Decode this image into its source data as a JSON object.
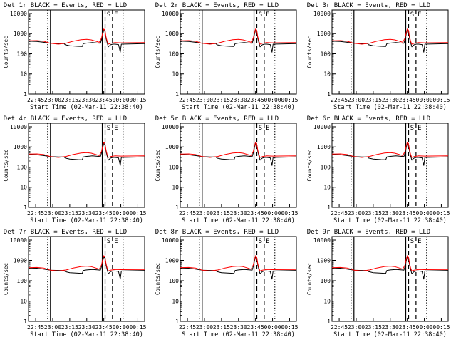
{
  "colors": {
    "events": "#000000",
    "lld": "#ff0000",
    "axes": "#000000",
    "background": "#ffffff"
  },
  "chart_data": [
    {
      "type": "line",
      "title": "Det 1r BLACK = Events, RED = LLD",
      "xlabel": "Start Time (02-Mar-11 22:38:40)",
      "ylabel": "Counts/sec"
    },
    {
      "type": "line",
      "title": "Det 2r BLACK = Events, RED = LLD",
      "xlabel": "Start Time (02-Mar-11 22:38:40)",
      "ylabel": "Counts/sec"
    },
    {
      "type": "line",
      "title": "Det 3r BLACK = Events, RED = LLD",
      "xlabel": "Start Time (02-Mar-11 22:38:40)",
      "ylabel": "Counts/sec"
    },
    {
      "type": "line",
      "title": "Det 4r BLACK = Events, RED = LLD",
      "xlabel": "Start Time (02-Mar-11 22:38:40)",
      "ylabel": "Counts/sec"
    },
    {
      "type": "line",
      "title": "Det 5r BLACK = Events, RED = LLD",
      "xlabel": "Start Time (02-Mar-11 22:38:40)",
      "ylabel": "Counts/sec"
    },
    {
      "type": "line",
      "title": "Det 6r BLACK = Events, RED = LLD",
      "xlabel": "Start Time (02-Mar-11 22:38:40)",
      "ylabel": "Counts/sec"
    },
    {
      "type": "line",
      "title": "Det 7r BLACK = Events, RED = LLD",
      "xlabel": "Start Time (02-Mar-11 22:38:40)",
      "ylabel": "Counts/sec"
    },
    {
      "type": "line",
      "title": "Det 8r BLACK = Events, RED = LLD",
      "xlabel": "Start Time (02-Mar-11 22:38:40)",
      "ylabel": "Counts/sec"
    },
    {
      "type": "line",
      "title": "Det 9r BLACK = Events, RED = LLD",
      "xlabel": "Start Time (02-Mar-11 22:38:40)",
      "ylabel": "Counts/sec"
    }
  ],
  "shared": {
    "x_ticks": [
      "22:45",
      "23:00",
      "23:15",
      "23:30",
      "23:45",
      "00:00",
      "00:15"
    ],
    "x_tick_times": [
      "22:45",
      "23:00",
      "23:15",
      "23:30",
      "23:45",
      "00:00",
      "00:15"
    ],
    "xlim": [
      "22:38:40",
      "00:21:00"
    ],
    "y_scale": "log",
    "ylim": [
      1,
      15000
    ],
    "y_ticks": [
      1,
      10,
      100,
      1000,
      10000
    ],
    "y_tick_labels": [
      "1",
      "10",
      "100",
      "1000",
      "10000"
    ],
    "marker_labels": [
      "S",
      "E"
    ],
    "vertical_lines": [
      {
        "time": "22:55:30",
        "style": "dotted"
      },
      {
        "time": "22:58:00",
        "style": "solid"
      },
      {
        "time": "23:43:40",
        "style": "solid"
      },
      {
        "time": "23:46:10",
        "style": "dashed"
      },
      {
        "time": "23:52:40",
        "style": "dashed"
      },
      {
        "time": "00:02:00",
        "style": "dotted"
      }
    ],
    "series": [
      {
        "color": "#000000",
        "x": [
          "22:38:40",
          "22:46",
          "22:52",
          "22:58",
          "23:05",
          "23:10",
          "23:11",
          "23:15",
          "23:22",
          "23:26",
          "23:27",
          "23:30",
          "23:35",
          "23:40",
          "23:42",
          "23:43",
          "23:44",
          "23:45",
          "23:46",
          "23:47",
          "23:48",
          "23:49",
          "23:50",
          "23:51",
          "23:53",
          "23:55",
          "23:58",
          "23:59:30",
          "00:00:30",
          "00:21"
        ],
        "y": [
          420,
          410,
          370,
          330,
          320,
          320,
          280,
          250,
          235,
          230,
          320,
          340,
          360,
          340,
          330,
          500,
          900,
          1500,
          1300,
          600,
          350,
          220,
          250,
          280,
          300,
          300,
          285,
          120,
          300,
          320
        ]
      },
      {
        "color": "#ff0000",
        "x": [
          "22:38:40",
          "22:46",
          "22:52",
          "22:58",
          "23:05",
          "23:12",
          "23:18",
          "23:25",
          "23:30",
          "23:34",
          "23:38",
          "23:41",
          "23:43",
          "23:44",
          "23:45",
          "23:46",
          "23:47",
          "23:48",
          "23:49",
          "23:51",
          "23:55",
          "00:00",
          "00:21"
        ],
        "y": [
          440,
          450,
          420,
          330,
          300,
          340,
          420,
          500,
          520,
          490,
          420,
          370,
          600,
          1100,
          1700,
          1500,
          700,
          420,
          300,
          330,
          360,
          350,
          360
        ]
      }
    ]
  }
}
